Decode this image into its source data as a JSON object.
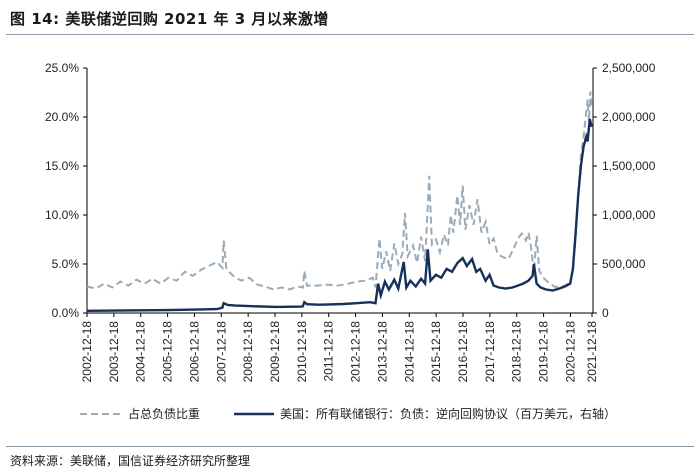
{
  "title": "图 14:  美联储逆回购 2021 年 3 月以来激增",
  "source": "资料来源：美联储，国信证券经济研究所整理",
  "colors": {
    "ratio": "#9aabb9",
    "amount": "#14315a",
    "axis": "#000000"
  },
  "chart_data": {
    "type": "line",
    "title": "美联储逆回购 2021 年 3 月以来激增",
    "y_left": {
      "ylim": [
        0,
        25
      ],
      "ticks": [
        "0.0%",
        "5.0%",
        "10.0%",
        "15.0%",
        "20.0%",
        "25.0%"
      ]
    },
    "y_right": {
      "ylim": [
        0,
        2500000
      ],
      "ticks": [
        "0",
        "500,000",
        "1,000,000",
        "1,500,000",
        "2,000,000",
        "2,500,000"
      ]
    },
    "x_range": [
      2002.96,
      2021.8
    ],
    "x_ticks": [
      {
        "x": 2002.96,
        "label": "2002-12-18"
      },
      {
        "x": 2003.96,
        "label": "2003-12-18"
      },
      {
        "x": 2004.96,
        "label": "2004-12-18"
      },
      {
        "x": 2005.96,
        "label": "2005-12-18"
      },
      {
        "x": 2006.96,
        "label": "2006-12-18"
      },
      {
        "x": 2007.96,
        "label": "2007-12-18"
      },
      {
        "x": 2008.96,
        "label": "2008-12-18"
      },
      {
        "x": 2009.96,
        "label": "2009-12-18"
      },
      {
        "x": 2010.96,
        "label": "2010-12-18"
      },
      {
        "x": 2011.96,
        "label": "2011-12-18"
      },
      {
        "x": 2012.96,
        "label": "2012-12-18"
      },
      {
        "x": 2013.96,
        "label": "2013-12-18"
      },
      {
        "x": 2014.96,
        "label": "2014-12-18"
      },
      {
        "x": 2015.96,
        "label": "2015-12-18"
      },
      {
        "x": 2016.96,
        "label": "2016-12-18"
      },
      {
        "x": 2017.96,
        "label": "2017-12-18"
      },
      {
        "x": 2018.96,
        "label": "2018-12-18"
      },
      {
        "x": 2019.96,
        "label": "2019-12-18"
      },
      {
        "x": 2020.96,
        "label": "2020-12-18"
      },
      {
        "x": 2021.96,
        "label": "2021-12-18"
      }
    ],
    "series": [
      {
        "name": "占总负债比重",
        "axis": "left",
        "unit": "%",
        "style": "dashed",
        "points": [
          [
            2002.96,
            2.7
          ],
          [
            2003.3,
            2.5
          ],
          [
            2003.6,
            3.0
          ],
          [
            2003.9,
            2.6
          ],
          [
            2004.2,
            3.2
          ],
          [
            2004.5,
            2.8
          ],
          [
            2004.8,
            3.4
          ],
          [
            2005.1,
            3.0
          ],
          [
            2005.4,
            3.5
          ],
          [
            2005.7,
            3.0
          ],
          [
            2006.0,
            3.6
          ],
          [
            2006.3,
            3.3
          ],
          [
            2006.6,
            4.2
          ],
          [
            2006.9,
            3.8
          ],
          [
            2007.2,
            4.4
          ],
          [
            2007.5,
            4.8
          ],
          [
            2007.8,
            5.2
          ],
          [
            2008.0,
            4.6
          ],
          [
            2008.05,
            7.4
          ],
          [
            2008.15,
            4.5
          ],
          [
            2008.4,
            3.8
          ],
          [
            2008.7,
            3.3
          ],
          [
            2009.0,
            3.6
          ],
          [
            2009.3,
            2.9
          ],
          [
            2009.6,
            2.7
          ],
          [
            2009.9,
            2.4
          ],
          [
            2010.2,
            2.6
          ],
          [
            2010.5,
            2.4
          ],
          [
            2010.8,
            2.7
          ],
          [
            2011.0,
            2.6
          ],
          [
            2011.05,
            4.3
          ],
          [
            2011.15,
            2.8
          ],
          [
            2011.5,
            2.8
          ],
          [
            2011.9,
            2.9
          ],
          [
            2012.3,
            2.8
          ],
          [
            2012.7,
            3.0
          ],
          [
            2013.0,
            3.2
          ],
          [
            2013.3,
            3.3
          ],
          [
            2013.6,
            3.6
          ],
          [
            2013.7,
            2.6
          ],
          [
            2013.85,
            7.6
          ],
          [
            2013.95,
            4.5
          ],
          [
            2014.1,
            6.3
          ],
          [
            2014.25,
            4.3
          ],
          [
            2014.4,
            7.1
          ],
          [
            2014.55,
            5.0
          ],
          [
            2014.7,
            6.0
          ],
          [
            2014.8,
            10.2
          ],
          [
            2014.9,
            5.8
          ],
          [
            2015.1,
            6.9
          ],
          [
            2015.25,
            5.1
          ],
          [
            2015.4,
            7.8
          ],
          [
            2015.55,
            5.3
          ],
          [
            2015.7,
            14.0
          ],
          [
            2015.8,
            7.0
          ],
          [
            2015.95,
            7.5
          ],
          [
            2016.1,
            6.2
          ],
          [
            2016.25,
            8.0
          ],
          [
            2016.4,
            6.9
          ],
          [
            2016.5,
            10.0
          ],
          [
            2016.6,
            8.2
          ],
          [
            2016.75,
            12.0
          ],
          [
            2016.85,
            9.0
          ],
          [
            2016.95,
            13.0
          ],
          [
            2017.05,
            8.5
          ],
          [
            2017.2,
            11.0
          ],
          [
            2017.35,
            9.0
          ],
          [
            2017.5,
            11.6
          ],
          [
            2017.65,
            8.2
          ],
          [
            2017.8,
            9.3
          ],
          [
            2017.95,
            7.0
          ],
          [
            2018.1,
            7.6
          ],
          [
            2018.25,
            6.0
          ],
          [
            2018.45,
            5.7
          ],
          [
            2018.65,
            5.5
          ],
          [
            2018.85,
            6.6
          ],
          [
            2019.0,
            7.6
          ],
          [
            2019.15,
            8.1
          ],
          [
            2019.3,
            7.4
          ],
          [
            2019.4,
            8.2
          ],
          [
            2019.5,
            6.6
          ],
          [
            2019.6,
            4.1
          ],
          [
            2019.7,
            7.9
          ],
          [
            2019.8,
            4.3
          ],
          [
            2019.95,
            3.6
          ],
          [
            2020.15,
            3.1
          ],
          [
            2020.35,
            2.7
          ],
          [
            2020.55,
            2.6
          ],
          [
            2020.75,
            2.8
          ],
          [
            2020.95,
            3.1
          ],
          [
            2021.05,
            4.5
          ],
          [
            2021.15,
            7.5
          ],
          [
            2021.25,
            12.0
          ],
          [
            2021.35,
            16.0
          ],
          [
            2021.45,
            18.0
          ],
          [
            2021.55,
            20.5
          ],
          [
            2021.6,
            21.8
          ],
          [
            2021.65,
            19.5
          ],
          [
            2021.7,
            22.6
          ],
          [
            2021.75,
            20.8
          ]
        ]
      },
      {
        "name": "美国：所有联储银行：负债：逆向回购协议（百万美元，右轴）",
        "axis": "right",
        "unit": "百万美元",
        "style": "solid",
        "points": [
          [
            2002.96,
            22000
          ],
          [
            2004.0,
            24000
          ],
          [
            2005.0,
            28000
          ],
          [
            2006.0,
            30000
          ],
          [
            2007.0,
            35000
          ],
          [
            2007.8,
            40000
          ],
          [
            2008.0,
            55000
          ],
          [
            2008.05,
            100000
          ],
          [
            2008.2,
            82000
          ],
          [
            2008.5,
            75000
          ],
          [
            2009.0,
            70000
          ],
          [
            2010.0,
            62000
          ],
          [
            2010.96,
            65000
          ],
          [
            2011.0,
            70000
          ],
          [
            2011.05,
            110000
          ],
          [
            2011.15,
            90000
          ],
          [
            2011.6,
            85000
          ],
          [
            2012.0,
            88000
          ],
          [
            2012.5,
            92000
          ],
          [
            2013.0,
            100000
          ],
          [
            2013.5,
            110000
          ],
          [
            2013.7,
            100000
          ],
          [
            2013.8,
            300000
          ],
          [
            2013.9,
            180000
          ],
          [
            2014.05,
            320000
          ],
          [
            2014.2,
            240000
          ],
          [
            2014.4,
            340000
          ],
          [
            2014.55,
            250000
          ],
          [
            2014.75,
            520000
          ],
          [
            2014.85,
            260000
          ],
          [
            2015.0,
            330000
          ],
          [
            2015.2,
            270000
          ],
          [
            2015.4,
            350000
          ],
          [
            2015.55,
            300000
          ],
          [
            2015.65,
            650000
          ],
          [
            2015.75,
            330000
          ],
          [
            2015.95,
            390000
          ],
          [
            2016.15,
            360000
          ],
          [
            2016.35,
            450000
          ],
          [
            2016.55,
            420000
          ],
          [
            2016.75,
            510000
          ],
          [
            2016.95,
            560000
          ],
          [
            2017.1,
            480000
          ],
          [
            2017.3,
            550000
          ],
          [
            2017.45,
            420000
          ],
          [
            2017.6,
            450000
          ],
          [
            2017.8,
            330000
          ],
          [
            2017.95,
            390000
          ],
          [
            2018.1,
            280000
          ],
          [
            2018.3,
            260000
          ],
          [
            2018.55,
            250000
          ],
          [
            2018.8,
            260000
          ],
          [
            2019.0,
            280000
          ],
          [
            2019.2,
            300000
          ],
          [
            2019.4,
            330000
          ],
          [
            2019.55,
            380000
          ],
          [
            2019.6,
            500000
          ],
          [
            2019.7,
            300000
          ],
          [
            2019.85,
            260000
          ],
          [
            2020.05,
            240000
          ],
          [
            2020.3,
            230000
          ],
          [
            2020.55,
            250000
          ],
          [
            2020.75,
            270000
          ],
          [
            2020.95,
            300000
          ],
          [
            2021.05,
            450000
          ],
          [
            2021.15,
            800000
          ],
          [
            2021.25,
            1200000
          ],
          [
            2021.35,
            1500000
          ],
          [
            2021.45,
            1700000
          ],
          [
            2021.55,
            1800000
          ],
          [
            2021.6,
            1750000
          ],
          [
            2021.68,
            1980000
          ],
          [
            2021.75,
            1900000
          ]
        ]
      }
    ]
  }
}
